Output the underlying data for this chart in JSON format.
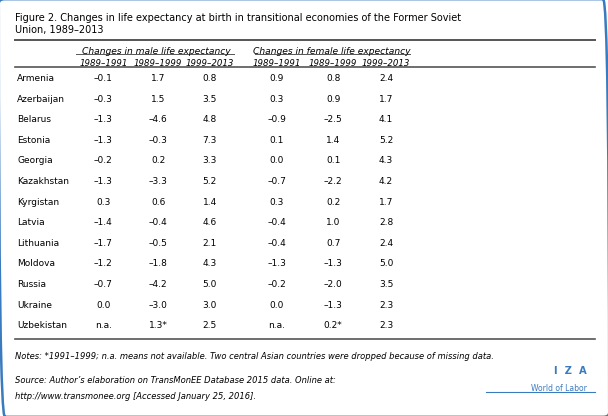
{
  "title_line1": "Figure 2. Changes in life expectancy at birth in transitional economies of the Former Soviet",
  "title_line2": "Union, 1989–2013",
  "col_group1": "Changes in male life expectancy",
  "col_group2": "Changes in female life expectancy",
  "subheaders": [
    "1989–1991",
    "1989–1999",
    "1999–2013",
    "1989–1991",
    "1989–1999",
    "1999–2013"
  ],
  "countries": [
    "Armenia",
    "Azerbaijan",
    "Belarus",
    "Estonia",
    "Georgia",
    "Kazakhstan",
    "Kyrgistan",
    "Latvia",
    "Lithuania",
    "Moldova",
    "Russia",
    "Ukraine",
    "Uzbekistan"
  ],
  "male_1989_1991": [
    "–0.1",
    "–0.3",
    "–1.3",
    "–1.3",
    "–0.2",
    "–1.3",
    "0.3",
    "–1.4",
    "–1.7",
    "–1.2",
    "–0.7",
    "0.0",
    "n.a."
  ],
  "male_1989_1999": [
    "1.7",
    "1.5",
    "–4.6",
    "–0.3",
    "0.2",
    "–3.3",
    "0.6",
    "–0.4",
    "–0.5",
    "–1.8",
    "–4.2",
    "–3.0",
    "1.3*"
  ],
  "male_1999_2013": [
    "0.8",
    "3.5",
    "4.8",
    "7.3",
    "3.3",
    "5.2",
    "1.4",
    "4.6",
    "2.1",
    "4.3",
    "5.0",
    "3.0",
    "2.5"
  ],
  "female_1989_1991": [
    "0.9",
    "0.3",
    "–0.9",
    "0.1",
    "0.0",
    "–0.7",
    "0.3",
    "–0.4",
    "–0.4",
    "–1.3",
    "–0.2",
    "0.0",
    "n.a."
  ],
  "female_1989_1999": [
    "0.8",
    "0.9",
    "–2.5",
    "1.4",
    "0.1",
    "–2.2",
    "0.2",
    "1.0",
    "0.7",
    "–1.3",
    "–2.0",
    "–1.3",
    "0.2*"
  ],
  "female_1999_2013": [
    "2.4",
    "1.7",
    "4.1",
    "5.2",
    "4.3",
    "4.2",
    "1.7",
    "2.8",
    "2.4",
    "5.0",
    "3.5",
    "2.3",
    "2.3"
  ],
  "notes": "Notes: *1991–1999; n.a. means not available. Two central Asian countries were dropped because of missing data.",
  "source_line1": "Source: Author’s elaboration on TransMonEE Database 2015 data. Online at:",
  "source_line2": "http://www.transmonee.org [Accessed January 25, 2016].",
  "bg_color": "#ffffff",
  "text_color": "#000000",
  "rule_color": "#555555",
  "border_color": "#3a7abf",
  "iza_color": "#3a7abf"
}
